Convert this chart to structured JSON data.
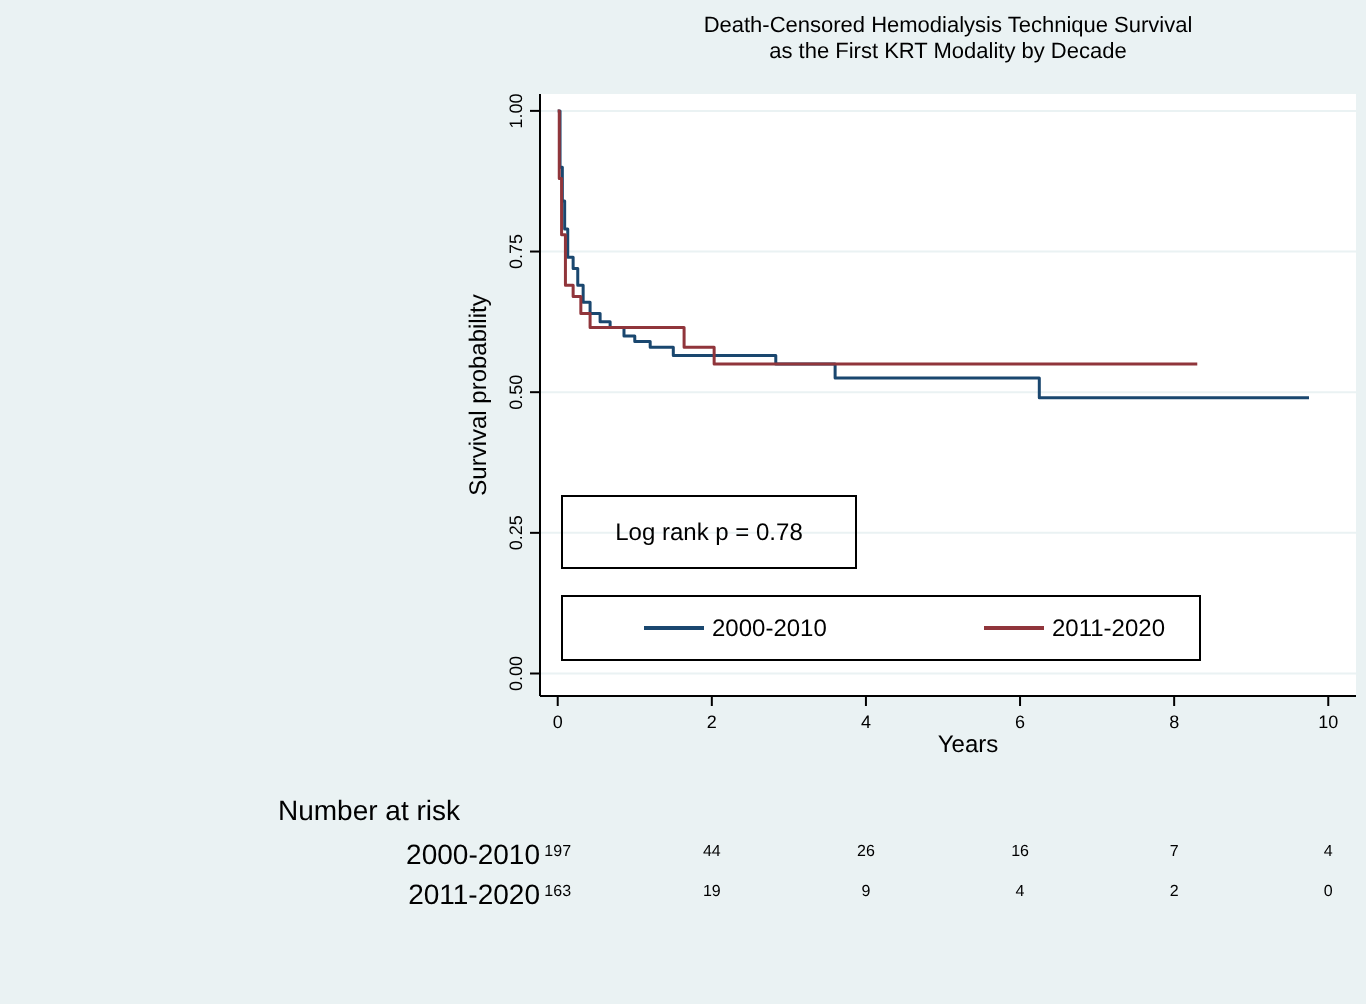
{
  "chart_data": {
    "type": "step",
    "title": "Death-Censored Hemodialysis Technique Survival\nas the First KRT Modality by Decade",
    "xlabel": "Years",
    "ylabel": "Survival probability",
    "xlim": [
      -0.23,
      10.36
    ],
    "ylim": [
      -0.04,
      1.03
    ],
    "xticks": [
      0,
      2,
      4,
      6,
      8,
      10
    ],
    "yticks": [
      {
        "value": 0,
        "label": "0.00"
      },
      {
        "value": 0.25,
        "label": "0.25"
      },
      {
        "value": 0.5,
        "label": "0.50"
      },
      {
        "value": 0.75,
        "label": "0.75"
      },
      {
        "value": 1,
        "label": "1.00"
      }
    ],
    "grid": "y",
    "legend": "bottom",
    "marker": "none",
    "line_style": "solid",
    "series": [
      {
        "name": "2000-2010",
        "color": "#1a476f",
        "x": [
          0,
          0.03,
          0.06,
          0.09,
          0.13,
          0.2,
          0.26,
          0.33,
          0.42,
          0.55,
          0.68,
          0.86,
          1.0,
          1.2,
          1.5,
          2.83,
          3.6,
          6.25,
          9.75
        ],
        "values": [
          1,
          0.9,
          0.84,
          0.79,
          0.74,
          0.72,
          0.69,
          0.66,
          0.64,
          0.625,
          0.615,
          0.6,
          0.59,
          0.58,
          0.565,
          0.55,
          0.525,
          0.49,
          0.49
        ]
      },
      {
        "name": "2011-2020",
        "color": "#90353b",
        "x": [
          0,
          0.02,
          0.05,
          0.1,
          0.2,
          0.3,
          0.42,
          1.64,
          2.03,
          8.3
        ],
        "values": [
          1,
          0.88,
          0.78,
          0.69,
          0.67,
          0.64,
          0.615,
          0.58,
          0.55,
          0.55
        ]
      }
    ],
    "annotations": [
      "Log rank p = 0.78",
      "Number at risk",
      "197",
      "44",
      "26",
      "16",
      "7",
      "4",
      "163",
      "19",
      "9",
      "4",
      "2",
      "0"
    ]
  }
}
